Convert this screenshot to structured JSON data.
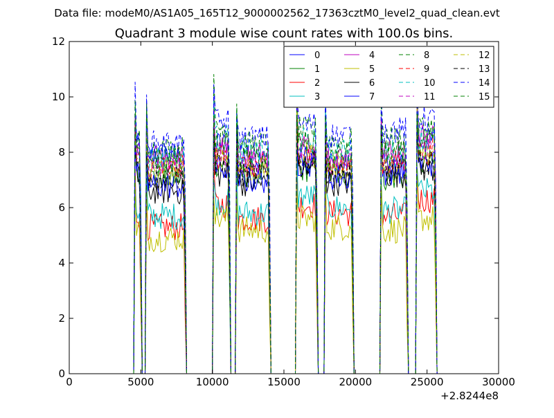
{
  "figure": {
    "suptitle": "Data file: modeM0/AS1A05_165T12_9000002562_17363cztM0_level2_quad_clean.evt",
    "offset_label": "+2.8244e8"
  },
  "chart_data": {
    "type": "line",
    "title": "Quadrant 3 module wise count rates with 100.0s bins.",
    "xlabel": "",
    "ylabel": "",
    "xlim": [
      0,
      30000
    ],
    "ylim": [
      0,
      12
    ],
    "x_offset": 282440000,
    "x_ticks": [
      0,
      5000,
      10000,
      15000,
      20000,
      25000,
      30000
    ],
    "x_tick_labels": [
      "0",
      "5000",
      "10000",
      "15000",
      "20000",
      "25000",
      "30000"
    ],
    "y_ticks": [
      0,
      2,
      4,
      6,
      8,
      10,
      12
    ],
    "y_tick_labels": [
      "0",
      "2",
      "4",
      "6",
      "8",
      "10",
      "12"
    ],
    "grid": false,
    "legend_placement": "top-right",
    "legend_columns": 4,
    "bin_seconds": 100,
    "observation_windows": [
      [
        4600,
        5000
      ],
      [
        5400,
        8100
      ],
      [
        10100,
        11200
      ],
      [
        11700,
        14000
      ],
      [
        15900,
        17300
      ],
      [
        17900,
        19800
      ],
      [
        21800,
        23600
      ],
      [
        24300,
        25600
      ]
    ],
    "series": [
      {
        "name": "0",
        "color": "#0000ff",
        "dash": "solid",
        "levels": [
          8.2,
          7.9,
          8.3,
          7.7,
          7.8,
          7.6,
          7.5,
          8.4
        ]
      },
      {
        "name": "1",
        "color": "#008000",
        "dash": "solid",
        "levels": [
          7.3,
          7.1,
          7.6,
          7.2,
          7.4,
          7.2,
          7.1,
          7.6
        ]
      },
      {
        "name": "2",
        "color": "#ff0000",
        "dash": "solid",
        "levels": [
          5.7,
          5.3,
          6.1,
          5.6,
          6.1,
          5.8,
          5.7,
          6.3
        ]
      },
      {
        "name": "3",
        "color": "#00bfbf",
        "dash": "solid",
        "levels": [
          5.9,
          5.7,
          6.2,
          5.8,
          6.4,
          6.0,
          5.9,
          6.6
        ]
      },
      {
        "name": "4",
        "color": "#bf00bf",
        "dash": "solid",
        "levels": [
          7.9,
          7.8,
          8.2,
          7.9,
          8.2,
          7.8,
          8.0,
          8.6
        ]
      },
      {
        "name": "5",
        "color": "#bfbf00",
        "dash": "solid",
        "levels": [
          5.3,
          4.9,
          5.6,
          5.2,
          5.6,
          5.3,
          5.2,
          5.6
        ]
      },
      {
        "name": "6",
        "color": "#000000",
        "dash": "solid",
        "levels": [
          7.1,
          6.6,
          7.2,
          6.9,
          7.4,
          6.9,
          7.2,
          7.4
        ]
      },
      {
        "name": "7",
        "color": "#0000ff",
        "dash": "solid",
        "levels": [
          7.2,
          6.8,
          7.4,
          7.0,
          7.6,
          7.1,
          7.3,
          7.6
        ]
      },
      {
        "name": "8",
        "color": "#008000",
        "dash": "dashed",
        "levels": [
          8.4,
          8.1,
          8.9,
          8.3,
          8.8,
          8.4,
          8.5,
          8.9
        ]
      },
      {
        "name": "9",
        "color": "#ff0000",
        "dash": "dashed",
        "levels": [
          7.6,
          7.4,
          7.8,
          7.5,
          7.8,
          7.5,
          7.6,
          8.0
        ]
      },
      {
        "name": "10",
        "color": "#00bfbf",
        "dash": "dashed",
        "levels": [
          8.1,
          7.8,
          8.5,
          8.0,
          8.4,
          8.1,
          8.0,
          8.5
        ]
      },
      {
        "name": "11",
        "color": "#bf00bf",
        "dash": "dashed",
        "levels": [
          7.7,
          7.5,
          8.0,
          7.6,
          8.0,
          7.7,
          7.7,
          8.2
        ]
      },
      {
        "name": "12",
        "color": "#bfbf00",
        "dash": "dashed",
        "levels": [
          7.5,
          7.3,
          7.9,
          7.4,
          7.9,
          7.5,
          7.4,
          7.9
        ]
      },
      {
        "name": "13",
        "color": "#000000",
        "dash": "dashed",
        "levels": [
          7.4,
          7.1,
          7.5,
          7.2,
          7.6,
          7.2,
          7.3,
          7.6
        ]
      },
      {
        "name": "14",
        "color": "#0000ff",
        "dash": "dashed",
        "levels": [
          8.6,
          8.3,
          9.1,
          8.5,
          9.0,
          8.6,
          8.8,
          9.2
        ]
      },
      {
        "name": "15",
        "color": "#008000",
        "dash": "dashed",
        "levels": [
          8.0,
          7.7,
          8.4,
          7.8,
          8.3,
          7.9,
          7.9,
          8.3
        ]
      }
    ]
  }
}
